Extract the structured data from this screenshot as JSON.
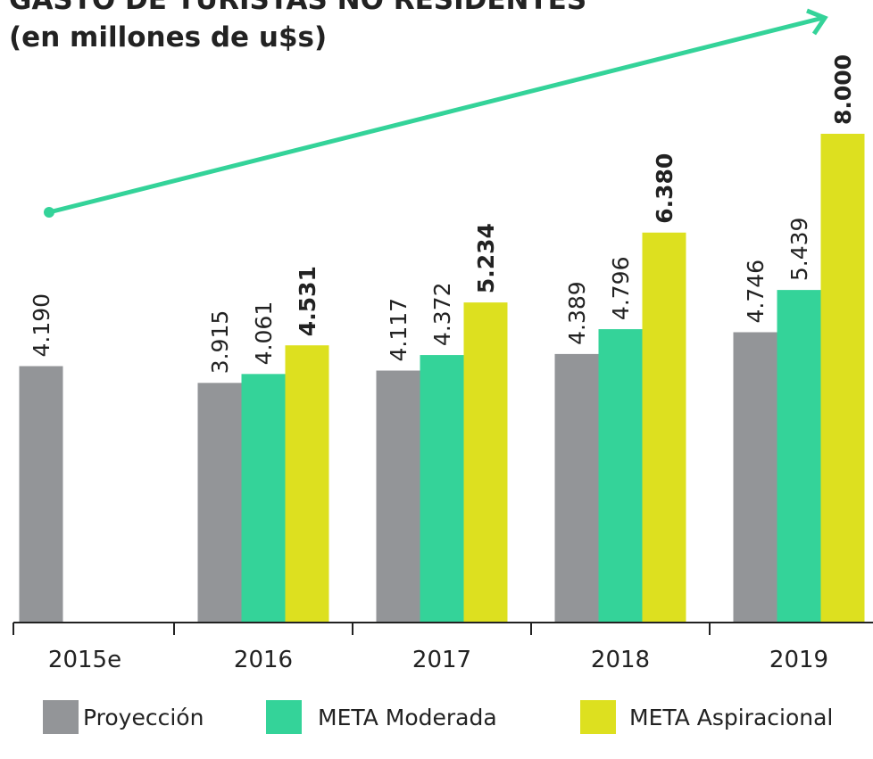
{
  "chart_data": {
    "type": "bar",
    "title": [
      "GASTO DE TURISTAS NO RESIDENTES",
      "(en millones de u$s)"
    ],
    "categories": [
      "2015e",
      "2016",
      "2017",
      "2018",
      "2019"
    ],
    "series": [
      {
        "name": "Proyección",
        "color": "#939598",
        "values": [
          4190,
          3915,
          4117,
          4389,
          4746
        ],
        "value_labels": [
          "4.190",
          "3.915",
          "4.117",
          "4.389",
          "4.746"
        ]
      },
      {
        "name": "META Moderada",
        "color": "#34d399",
        "values": [
          null,
          4061,
          4372,
          4796,
          5439
        ],
        "value_labels": [
          null,
          "4.061",
          "4.372",
          "4.796",
          "5.439"
        ]
      },
      {
        "name": "META Aspiracional",
        "color": "#dde01f",
        "values": [
          null,
          4531,
          5234,
          6380,
          8000
        ],
        "value_labels": [
          null,
          "4.531",
          "5.234",
          "6.380",
          "8.000"
        ]
      }
    ],
    "ylim": [
      0,
      8000
    ]
  }
}
